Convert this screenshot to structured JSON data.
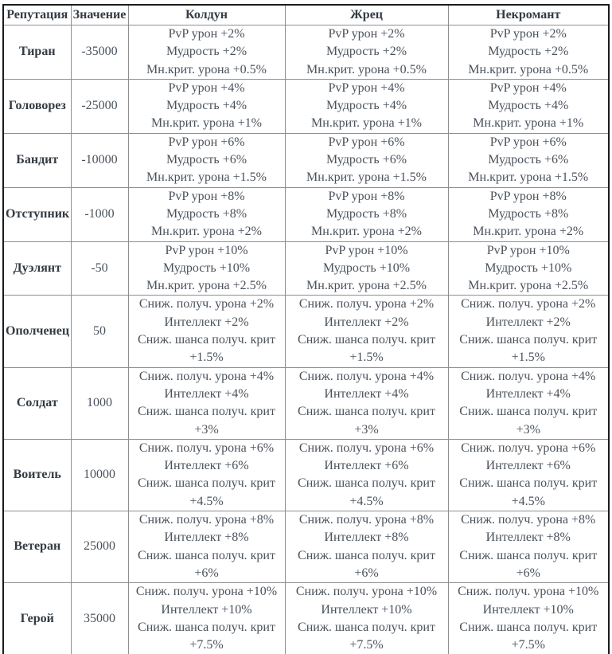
{
  "table": {
    "columns": [
      {
        "label": "Репутация"
      },
      {
        "label": "Значение"
      },
      {
        "label": "Колдун"
      },
      {
        "label": "Жрец"
      },
      {
        "label": "Некромант"
      }
    ],
    "rows": [
      {
        "reputation": "Тиран",
        "value": "-35000",
        "class_bonuses": [
          [
            "PvP урон +2%",
            "Мудрость +2%",
            "Мн.крит. урона +0.5%"
          ],
          [
            "PvP урон +2%",
            "Мудрость +2%",
            "Мн.крит. урона +0.5%"
          ],
          [
            "PvP урон +2%",
            "Мудрость +2%",
            "Мн.крит. урона +0.5%"
          ]
        ]
      },
      {
        "reputation": "Головорез",
        "value": "-25000",
        "class_bonuses": [
          [
            "PvP урон +4%",
            "Мудрость +4%",
            "Мн.крит. урона +1%"
          ],
          [
            "PvP урон +4%",
            "Мудрость +4%",
            "Мн.крит. урона +1%"
          ],
          [
            "PvP урон +4%",
            "Мудрость +4%",
            "Мн.крит. урона +1%"
          ]
        ]
      },
      {
        "reputation": "Бандит",
        "value": "-10000",
        "class_bonuses": [
          [
            "PvP урон +6%",
            "Мудрость +6%",
            "Мн.крит. урона +1.5%"
          ],
          [
            "PvP урон +6%",
            "Мудрость +6%",
            "Мн.крит. урона +1.5%"
          ],
          [
            "PvP урон +6%",
            "Мудрость +6%",
            "Мн.крит. урона +1.5%"
          ]
        ]
      },
      {
        "reputation": "Отступник",
        "value": "-1000",
        "class_bonuses": [
          [
            "PvP урон +8%",
            "Мудрость +8%",
            "Мн.крит. урона +2%"
          ],
          [
            "PvP урон +8%",
            "Мудрость +8%",
            "Мн.крит. урона +2%"
          ],
          [
            "PvP урон +8%",
            "Мудрость +8%",
            "Мн.крит. урона +2%"
          ]
        ]
      },
      {
        "reputation": "Дуэлянт",
        "value": "-50",
        "class_bonuses": [
          [
            "PvP урон +10%",
            "Мудрость +10%",
            "Мн.крит. урона +2.5%"
          ],
          [
            "PvP урон +10%",
            "Мудрость +10%",
            "Мн.крит. урона +2.5%"
          ],
          [
            "PvP урон +10%",
            "Мудрость +10%",
            "Мн.крит. урона +2.5%"
          ]
        ]
      },
      {
        "reputation": "Ополченец",
        "value": "50",
        "class_bonuses": [
          [
            "Сниж. получ. урона +2%",
            "Интеллект +2%",
            "Сниж. шанса получ. крит",
            "+1.5%"
          ],
          [
            "Сниж. получ. урона +2%",
            "Интеллект +2%",
            "Сниж. шанса получ. крит",
            "+1.5%"
          ],
          [
            "Сниж. получ. урона +2%",
            "Интеллект +2%",
            "Сниж. шанса получ. крит",
            "+1.5%"
          ]
        ]
      },
      {
        "reputation": "Солдат",
        "value": "1000",
        "class_bonuses": [
          [
            "Сниж. получ. урона +4%",
            "Интеллект +4%",
            "Сниж. шанса получ. крит",
            "+3%"
          ],
          [
            "Сниж. получ. урона +4%",
            "Интеллект +4%",
            "Сниж. шанса получ. крит",
            "+3%"
          ],
          [
            "Сниж. получ. урона +4%",
            "Интеллект +4%",
            "Сниж. шанса получ. крит",
            "+3%"
          ]
        ]
      },
      {
        "reputation": "Воитель",
        "value": "10000",
        "class_bonuses": [
          [
            "Сниж. получ. урона +6%",
            "Интеллект +6%",
            "Сниж. шанса получ. крит",
            "+4.5%"
          ],
          [
            "Сниж. получ. урона +6%",
            "Интеллект +6%",
            "Сниж. шанса получ. крит",
            "+4.5%"
          ],
          [
            "Сниж. получ. урона +6%",
            "Интеллект +6%",
            "Сниж. шанса получ. крит",
            "+4.5%"
          ]
        ]
      },
      {
        "reputation": "Ветеран",
        "value": "25000",
        "class_bonuses": [
          [
            "Сниж. получ. урона +8%",
            "Интеллект +8%",
            "Сниж. шанса получ. крит",
            "+6%"
          ],
          [
            "Сниж. получ. урона +8%",
            "Интеллект +8%",
            "Сниж. шанса получ. крит",
            "+6%"
          ],
          [
            "Сниж. получ. урона +8%",
            "Интеллект +8%",
            "Сниж. шанса получ. крит",
            "+6%"
          ]
        ]
      },
      {
        "reputation": "Герой",
        "value": "35000",
        "class_bonuses": [
          [
            "Сниж. получ. урона +10%",
            "Интеллект +10%",
            "Сниж. шанса получ. крит",
            "+7.5%"
          ],
          [
            "Сниж. получ. урона +10%",
            "Интеллект +10%",
            "Сниж. шанса получ. крит",
            "+7.5%"
          ],
          [
            "Сниж. получ. урона +10%",
            "Интеллект +10%",
            "Сниж. шанса получ. крит",
            "+7.5%"
          ]
        ]
      }
    ]
  }
}
